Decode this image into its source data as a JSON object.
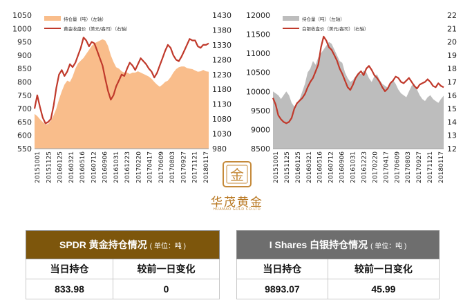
{
  "chart_data": [
    {
      "type": "area+line",
      "legend": [
        "持仓量（吨）（左轴）",
        "黄金收盘价（美元/盎司）（右轴）"
      ],
      "legend_position": "top-left",
      "colors": {
        "area": "#f9bd8b",
        "line": "#c0392b"
      },
      "x_ticks": [
        "20151001",
        "20151125",
        "20160125",
        "20160321",
        "20160516",
        "20160712",
        "20160906",
        "20161031",
        "20161223",
        "20170220",
        "20170417",
        "20170609",
        "20170803",
        "20170927",
        "20171121",
        "20180117"
      ],
      "y_left": {
        "range": [
          550,
          1050
        ],
        "ticks": [
          550,
          600,
          650,
          700,
          750,
          800,
          850,
          900,
          950,
          1000,
          1050
        ]
      },
      "y_right": {
        "range": [
          980,
          1430
        ],
        "ticks": [
          980,
          1030,
          1080,
          1130,
          1180,
          1230,
          1280,
          1330,
          1380,
          1430
        ]
      },
      "series": [
        {
          "name": "持仓量（吨）（左轴）",
          "axis": "left",
          "kind": "area",
          "values": [
            680,
            672,
            660,
            650,
            640,
            643,
            655,
            675,
            700,
            735,
            765,
            790,
            805,
            800,
            820,
            850,
            870,
            880,
            890,
            905,
            920,
            935,
            945,
            950,
            955,
            960,
            955,
            935,
            900,
            875,
            855,
            850,
            840,
            835,
            835,
            830,
            835,
            835,
            840,
            835,
            830,
            825,
            820,
            812,
            800,
            790,
            782,
            790,
            800,
            805,
            818,
            835,
            848,
            855,
            858,
            858,
            852,
            850,
            848,
            843,
            838,
            840,
            845,
            840,
            838
          ]
        },
        {
          "name": "黄金收盘价（美元/盎司）（右轴）",
          "axis": "right",
          "kind": "line",
          "values": [
            1115,
            1160,
            1120,
            1085,
            1065,
            1070,
            1080,
            1125,
            1185,
            1230,
            1245,
            1225,
            1240,
            1265,
            1255,
            1270,
            1295,
            1320,
            1355,
            1345,
            1325,
            1340,
            1335,
            1310,
            1285,
            1260,
            1215,
            1175,
            1145,
            1160,
            1190,
            1210,
            1230,
            1225,
            1250,
            1270,
            1260,
            1245,
            1265,
            1285,
            1275,
            1265,
            1250,
            1240,
            1220,
            1235,
            1260,
            1285,
            1310,
            1330,
            1320,
            1295,
            1280,
            1275,
            1290,
            1310,
            1330,
            1350,
            1345,
            1345,
            1325,
            1320,
            1330,
            1330,
            1335
          ]
        }
      ]
    },
    {
      "type": "area+line",
      "legend": [
        "持仓量（吨）（左轴）",
        "白银收盘价（美元/盎司）（右轴）"
      ],
      "legend_position": "top-left",
      "colors": {
        "area": "#bdbdbd",
        "line": "#c0392b"
      },
      "x_ticks": [
        "20151001",
        "20151125",
        "20160125",
        "20160321",
        "20160516",
        "20160712",
        "20160906",
        "20161031",
        "20161223",
        "20170220",
        "20170417",
        "20170609",
        "20170803",
        "20170927",
        "20171121",
        "20180117"
      ],
      "y_left": {
        "range": [
          8500,
          12000
        ],
        "ticks": [
          8500,
          9000,
          9500,
          10000,
          10500,
          11000,
          11500,
          12000
        ]
      },
      "y_right": {
        "range": [
          12,
          22
        ],
        "ticks": [
          12,
          13,
          14,
          15,
          16,
          17,
          18,
          19,
          20,
          21,
          22
        ]
      },
      "series": [
        {
          "name": "持仓量（吨）（左轴）",
          "axis": "left",
          "kind": "area",
          "values": [
            10000,
            9950,
            9900,
            9800,
            9900,
            10000,
            9900,
            9700,
            9600,
            9700,
            9800,
            10000,
            10200,
            10500,
            10600,
            10800,
            10700,
            10900,
            11000,
            11100,
            11200,
            11300,
            11250,
            11100,
            10950,
            10800,
            10750,
            10500,
            10350,
            10250,
            10300,
            10400,
            10500,
            10450,
            10550,
            10500,
            10350,
            10250,
            10400,
            10450,
            10300,
            10200,
            10150,
            10100,
            10200,
            10300,
            10200,
            10050,
            9950,
            9900,
            9850,
            10000,
            10150,
            10200,
            10050,
            9900,
            9800,
            9750,
            9850,
            9900,
            9800,
            9750,
            9700,
            9800,
            9890
          ]
        },
        {
          "name": "白银收盘价（美元/盎司）（右轴）",
          "axis": "right",
          "kind": "line",
          "values": [
            15.8,
            15.3,
            14.5,
            14.2,
            14.0,
            13.9,
            14.0,
            14.3,
            15.0,
            15.4,
            15.6,
            15.8,
            16.1,
            16.6,
            17.0,
            17.3,
            17.8,
            18.3,
            19.6,
            20.4,
            20.1,
            19.6,
            19.4,
            19.0,
            18.6,
            18.0,
            17.6,
            17.1,
            16.6,
            16.4,
            16.8,
            17.3,
            17.6,
            17.8,
            17.5,
            18.0,
            18.2,
            17.9,
            17.5,
            17.3,
            17.0,
            16.6,
            16.3,
            16.5,
            16.9,
            17.1,
            17.4,
            17.3,
            17.0,
            16.9,
            17.1,
            17.3,
            17.0,
            16.7,
            16.5,
            16.8,
            16.9,
            17.0,
            17.2,
            17.0,
            16.7,
            16.6,
            16.9,
            16.7,
            16.6
          ]
        }
      ]
    }
  ],
  "logo": {
    "name": "华茂黄金",
    "sub": "HUAMAO GOLD CO.LTD",
    "glyph": "金"
  },
  "tables": {
    "gold": {
      "title": "SPDR 黄金持仓情况",
      "unit": "( 单位：吨 )",
      "col1": "当日持仓",
      "col2": "较前一日变化",
      "val1": "833.98",
      "val2": "0",
      "header_color": "#7d560c"
    },
    "silver": {
      "title": "I Shares 白银持仓情况",
      "unit": "( 单位：吨 )",
      "col1": "当日持仓",
      "col2": "较前一日变化",
      "val1": "9893.07",
      "val2": "45.99",
      "header_color": "#6e6e6e"
    }
  }
}
